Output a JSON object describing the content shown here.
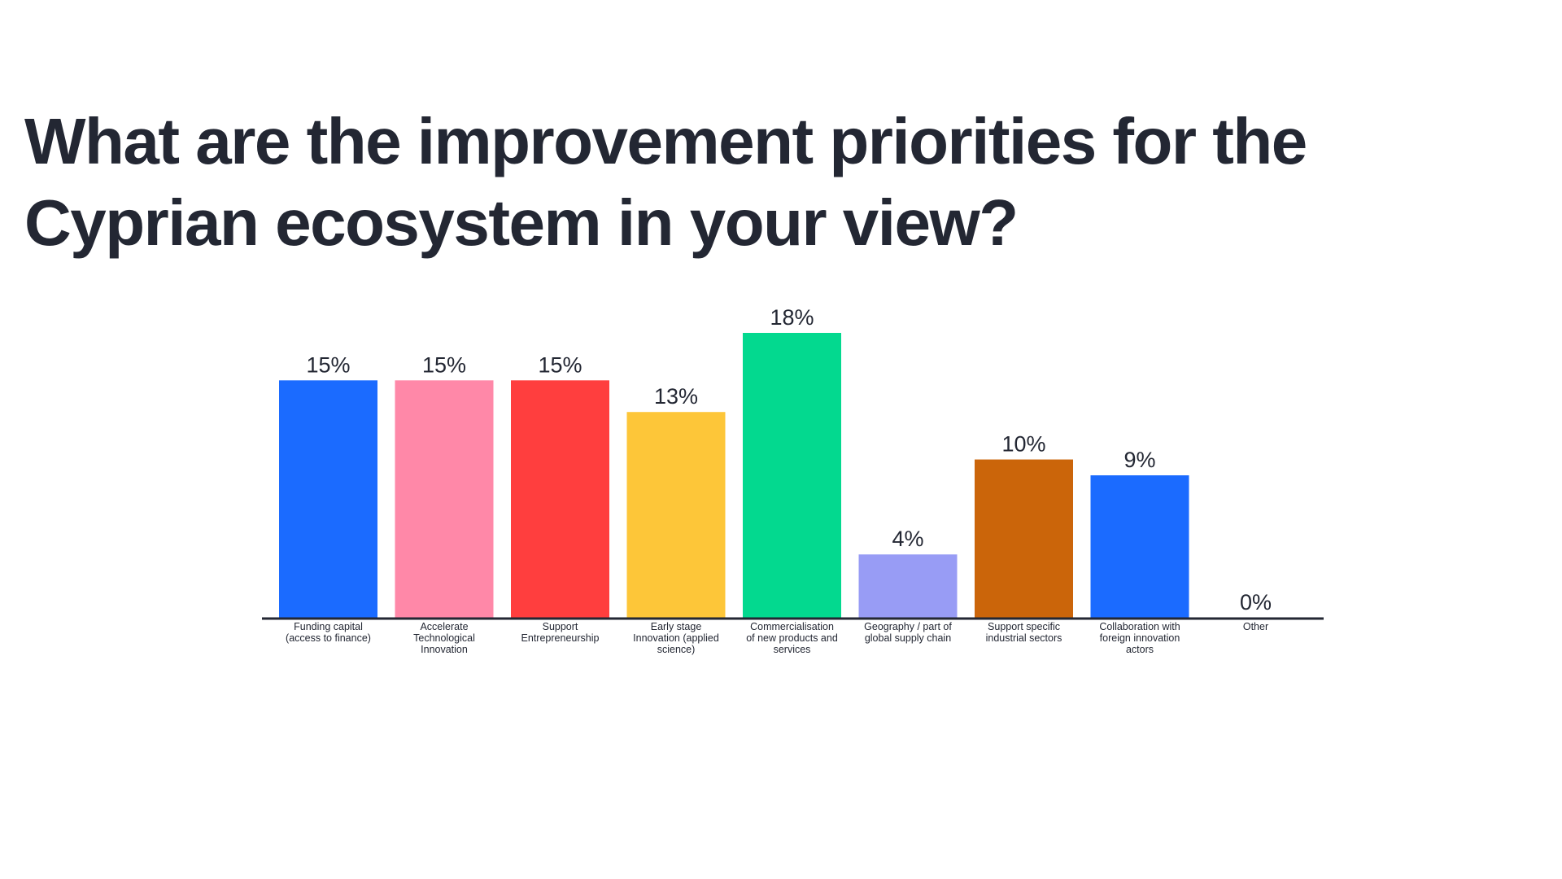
{
  "slide": {
    "title_lines": [
      "What are the improvement priorities for the",
      "Cyprian ecosystem in your view?"
    ]
  },
  "chart_data": {
    "type": "bar",
    "title": "What are the improvement priorities for the Cyprian ecosystem in your view?",
    "xlabel": "",
    "ylabel": "",
    "ylim": [
      0,
      18
    ],
    "grid": false,
    "legend": "none",
    "value_suffix": "%",
    "categories": [
      [
        "Funding capital",
        "(access to finance)"
      ],
      [
        "Accelerate",
        "Technological",
        "Innovation"
      ],
      [
        "Support",
        "Entrepreneurship"
      ],
      [
        "Early stage",
        "Innovation (applied",
        "science)"
      ],
      [
        "Commercialisation",
        "of new products and",
        "services"
      ],
      [
        "Geography / part of",
        "global supply chain"
      ],
      [
        "Support specific",
        "industrial sectors"
      ],
      [
        "Collaboration with",
        "foreign innovation",
        "actors"
      ],
      [
        "Other"
      ]
    ],
    "values": [
      15,
      15,
      15,
      13,
      18,
      4,
      10,
      9,
      0
    ],
    "value_labels": [
      "15%",
      "15%",
      "15%",
      "13%",
      "18%",
      "4%",
      "10%",
      "9%",
      "0%"
    ],
    "colors": [
      "#1b6bff",
      "#ff88a8",
      "#ff3e3e",
      "#fdc639",
      "#03d98f",
      "#989cf5",
      "#cb650a",
      "#1b6bff",
      "#1b6bff"
    ],
    "axis_color": "#232733"
  }
}
